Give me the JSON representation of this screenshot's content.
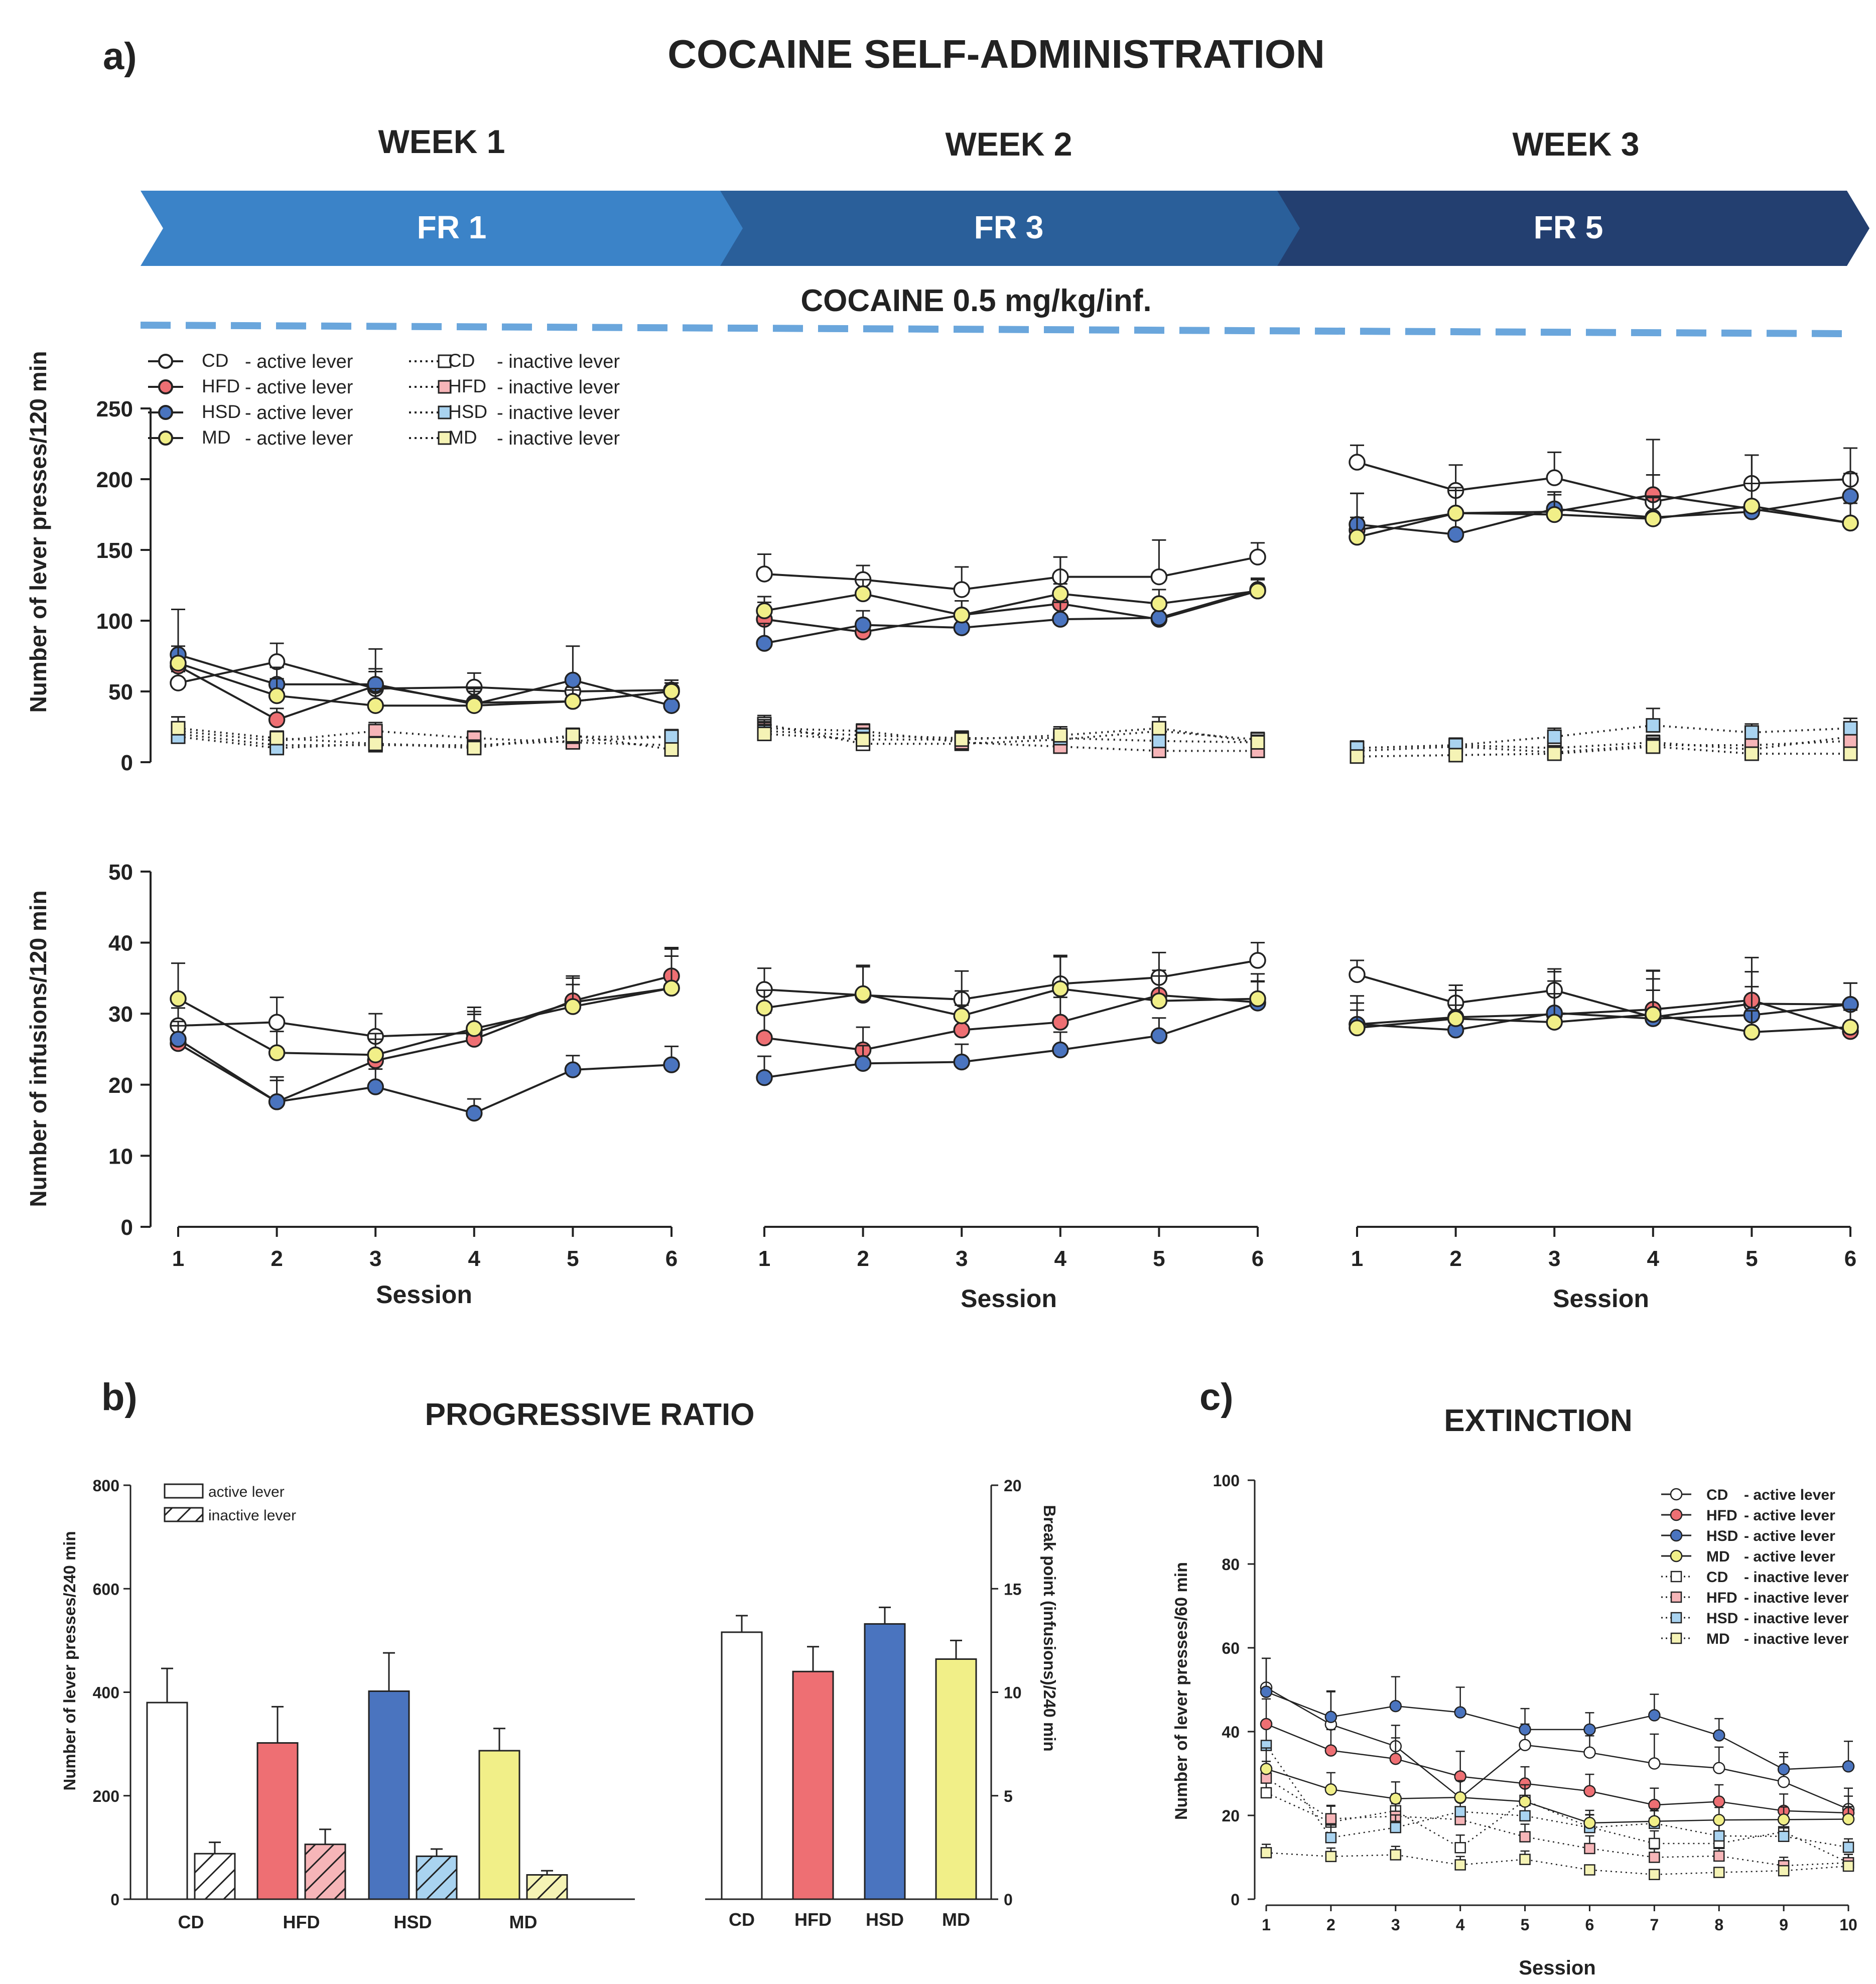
{
  "panel_a": {
    "label": "a)",
    "title": "COCAINE SELF-ADMINISTRATION",
    "weeks": [
      {
        "name": "WEEK 1",
        "schedule": "FR 1",
        "color": "#3b83c8"
      },
      {
        "name": "WEEK 2",
        "schedule": "FR 3",
        "color": "#2a5f9a"
      },
      {
        "name": "WEEK 3",
        "schedule": "FR 5",
        "color": "#233f70"
      }
    ],
    "dose_label": "COCAINE 0.5 mg/kg/inf.",
    "dose_color": "#2e5ea8",
    "dash_color": "#6aa6dc",
    "legend": [
      {
        "group": "CD",
        "active": "- active lever",
        "inactive": "- inactive lever"
      },
      {
        "group": "HFD",
        "active": "- active lever",
        "inactive": "- inactive lever"
      },
      {
        "group": "HSD",
        "active": "- active lever",
        "inactive": "- inactive lever"
      },
      {
        "group": "MD",
        "active": "- active lever",
        "inactive": "- inactive lever"
      }
    ],
    "top_ylabel": "Number of lever presses/120 min",
    "bottom_ylabel": "Number of infusions/120 min",
    "xlabel": "Session"
  },
  "group_colors": {
    "CD": "#ffffff",
    "HFD": "#ee6f73",
    "HSD": "#4a74bf",
    "MD": "#f1ef88"
  },
  "inactive_colors": {
    "CD": "#ffffff",
    "HFD": "#f6b5b8",
    "HSD": "#a9d3f0",
    "MD": "#f5f3b5"
  },
  "panel_b": {
    "label": "b)",
    "title": "PROGRESSIVE RATIO",
    "legend_active": "active lever",
    "legend_inactive": "inactive lever",
    "ylabel_left": "Number of lever presses/240 min",
    "ylabel_right": "Break point (infusions)/240 min"
  },
  "panel_c": {
    "label": "c)",
    "title": "EXTINCTION",
    "legend": [
      {
        "group": "CD",
        "text": "- active lever"
      },
      {
        "group": "HFD",
        "text": "- active lever"
      },
      {
        "group": "HSD",
        "text": "- active lever"
      },
      {
        "group": "MD",
        "text": "- active lever"
      },
      {
        "group": "CD",
        "text": "- inactive lever"
      },
      {
        "group": "HFD",
        "text": "- inactive lever"
      },
      {
        "group": "HSD",
        "text": "- inactive lever"
      },
      {
        "group": "MD",
        "text": "- inactive lever"
      }
    ],
    "ylabel": "Number of lever presses/60 min",
    "xlabel": "Session"
  },
  "chart_data": [
    {
      "id": "a_lever",
      "type": "line",
      "ylabel": "Number of lever presses/120 min",
      "xlabel": "Session",
      "ylim": [
        0,
        250
      ],
      "yticks": [
        0,
        50,
        100,
        150,
        200,
        250
      ],
      "x": [
        1,
        2,
        3,
        4,
        5,
        6
      ],
      "weeks": [
        {
          "name": "WEEK 1",
          "active": {
            "CD": [
              56,
              71,
              52,
              53,
              50,
              51
            ],
            "HFD": [
              68,
              30,
              54,
              42,
              43,
              50
            ],
            "HSD": [
              76,
              55,
              55,
              41,
              58,
              40
            ],
            "MD": [
              70,
              47,
              40,
              40,
              43,
              50
            ]
          },
          "active_err": {
            "CD": [
              8,
              13,
              12,
              10,
              8,
              7
            ],
            "HFD": [
              10,
              8,
              12,
              10,
              10,
              6
            ],
            "HSD": [
              32,
              12,
              25,
              12,
              24,
              10
            ],
            "MD": [
              12,
              12,
              12,
              10,
              8,
              6
            ]
          },
          "inactive": {
            "CD": [
              20,
              12,
              12,
              12,
              15,
              18
            ],
            "HFD": [
              22,
              15,
              22,
              17,
              14,
              12
            ],
            "HSD": [
              18,
              10,
              13,
              11,
              18,
              18
            ],
            "MD": [
              24,
              17,
              13,
              10,
              19,
              9
            ]
          },
          "inactive_err": {
            "CD": [
              5,
              5,
              4,
              4,
              5,
              5
            ],
            "HFD": [
              6,
              5,
              6,
              5,
              5,
              4
            ],
            "HSD": [
              14,
              5,
              5,
              4,
              5,
              5
            ],
            "MD": [
              8,
              5,
              4,
              4,
              5,
              4
            ]
          }
        },
        {
          "name": "WEEK 2",
          "active": {
            "CD": [
              133,
              129,
              122,
              131,
              131,
              145
            ],
            "HFD": [
              101,
              92,
              104,
              112,
              101,
              121
            ],
            "HSD": [
              84,
              97,
              95,
              101,
              102,
              122
            ],
            "MD": [
              107,
              119,
              104,
              119,
              112,
              121
            ]
          },
          "active_err": {
            "CD": [
              14,
              10,
              16,
              14,
              26,
              10
            ],
            "HFD": [
              12,
              8,
              10,
              14,
              12,
              8
            ],
            "HSD": [
              14,
              10,
              8,
              12,
              10,
              8
            ],
            "MD": [
              10,
              10,
              10,
              26,
              10,
              8
            ]
          },
          "inactive": {
            "CD": [
              27,
              13,
              13,
              16,
              22,
              16
            ],
            "HFD": [
              24,
              22,
              14,
              11,
              8,
              8
            ],
            "HSD": [
              22,
              19,
              17,
              17,
              15,
              14
            ],
            "MD": [
              20,
              16,
              16,
              19,
              24,
              14
            ]
          },
          "inactive_err": {
            "CD": [
              6,
              5,
              5,
              5,
              6,
              5
            ],
            "HFD": [
              6,
              5,
              4,
              4,
              4,
              4
            ],
            "HSD": [
              6,
              5,
              5,
              5,
              5,
              5
            ],
            "MD": [
              6,
              5,
              5,
              6,
              8,
              5
            ]
          }
        },
        {
          "name": "WEEK 3",
          "active": {
            "CD": [
              212,
              192,
              201,
              184,
              197,
              200
            ],
            "HFD": [
              164,
              176,
              177,
              189,
              179,
              169
            ],
            "HSD": [
              168,
              161,
              179,
              173,
              177,
              188
            ],
            "MD": [
              159,
              176,
              175,
              172,
              181,
              169
            ]
          },
          "active_err": {
            "CD": [
              12,
              18,
              18,
              44,
              20,
              22
            ],
            "HFD": [
              26,
              18,
              14,
              14,
              38,
              18
            ],
            "HSD": [
              22,
              14,
              12,
              14,
              40,
              16
            ],
            "MD": [
              14,
              16,
              14,
              16,
              16,
              14
            ]
          },
          "inactive": {
            "CD": [
              10,
              12,
              10,
              14,
              9,
              18
            ],
            "HFD": [
              8,
              11,
              7,
              12,
              12,
              15
            ],
            "HSD": [
              10,
              12,
              18,
              26,
              21,
              24
            ],
            "MD": [
              4,
              5,
              6,
              11,
              6,
              6
            ]
          },
          "inactive_err": {
            "CD": [
              4,
              4,
              4,
              5,
              4,
              6
            ],
            "HFD": [
              4,
              4,
              4,
              5,
              5,
              5
            ],
            "HSD": [
              5,
              5,
              6,
              12,
              6,
              7
            ],
            "MD": [
              3,
              3,
              3,
              4,
              3,
              3
            ]
          }
        }
      ]
    },
    {
      "id": "a_infusions",
      "type": "line",
      "ylabel": "Number of infusions/120 min",
      "xlabel": "Session",
      "ylim": [
        0,
        50
      ],
      "yticks": [
        0,
        10,
        20,
        30,
        40,
        50
      ],
      "x": [
        1,
        2,
        3,
        4,
        5,
        6
      ],
      "xticks": [
        "1",
        "2",
        "3",
        "4",
        "5",
        "6"
      ],
      "weeks": [
        {
          "name": "WEEK 1",
          "active": {
            "CD": [
              28.3,
              28.8,
              26.8,
              27.3,
              31.6,
              33.6
            ],
            "HFD": [
              25.8,
              17.6,
              23.4,
              26.4,
              31.8,
              35.3
            ],
            "HSD": [
              26.4,
              17.6,
              19.7,
              16.0,
              22.1,
              22.8
            ],
            "MD": [
              32.1,
              24.5,
              24.2,
              27.9,
              31.0,
              33.6
            ]
          },
          "active_err": {
            "CD": [
              2.5,
              3.5,
              3.2,
              3.0,
              2.5,
              4.5
            ],
            "HFD": [
              2.5,
              3.5,
              3.0,
              3.5,
              3.5,
              4.0
            ],
            "HSD": [
              2.5,
              3.0,
              2.5,
              2.0,
              2.0,
              2.6
            ],
            "MD": [
              5.0,
              3.0,
              3.0,
              3.0,
              4.0,
              5.5
            ]
          }
        },
        {
          "name": "WEEK 2",
          "active": {
            "CD": [
              33.4,
              32.6,
              32.0,
              34.2,
              35.1,
              37.5
            ],
            "HFD": [
              26.6,
              24.9,
              27.7,
              28.8,
              32.6,
              31.6
            ],
            "HSD": [
              21.0,
              23.0,
              23.2,
              24.9,
              26.9,
              31.5
            ],
            "MD": [
              30.8,
              32.8,
              29.7,
              33.5,
              31.8,
              32.1
            ]
          },
          "active_err": {
            "CD": [
              3.0,
              4.0,
              4.0,
              4.0,
              3.5,
              2.5
            ],
            "HFD": [
              3.5,
              3.2,
              3.5,
              3.5,
              3.5,
              3.0
            ],
            "HSD": [
              3.0,
              2.5,
              2.5,
              2.5,
              2.5,
              3.0
            ],
            "MD": [
              2.5,
              4.0,
              3.5,
              4.5,
              3.5,
              3.5
            ]
          }
        },
        {
          "name": "WEEK 3",
          "active": {
            "CD": [
              35.5,
              31.5,
              33.3,
              29.5,
              31.4,
              31.3
            ],
            "HFD": [
              28.5,
              29.5,
              29.9,
              30.6,
              31.9,
              27.5
            ],
            "HSD": [
              28.5,
              27.7,
              30.1,
              29.3,
              29.8,
              31.3
            ],
            "MD": [
              28.0,
              29.3,
              28.8,
              29.9,
              27.4,
              28.1
            ]
          },
          "active_err": {
            "CD": [
              2.0,
              2.5,
              3.0,
              6.5,
              6.5,
              3.0
            ],
            "HFD": [
              3.0,
              4.5,
              6.0,
              5.5,
              4.0,
              3.0
            ],
            "HSD": [
              4.0,
              3.5,
              4.5,
              4.0,
              4.0,
              3.0
            ],
            "MD": [
              2.5,
              4.0,
              4.0,
              5.0,
              3.0,
              2.5
            ]
          }
        }
      ]
    },
    {
      "id": "b_lever",
      "type": "bar",
      "title": "PROGRESSIVE RATIO",
      "categories": [
        "CD",
        "HFD",
        "HSD",
        "MD"
      ],
      "ylabel": "Number of lever presses/240 min",
      "ylim": [
        0,
        800
      ],
      "yticks": [
        0,
        200,
        400,
        600,
        800
      ],
      "series": [
        {
          "name": "active lever",
          "values": [
            380,
            302,
            402,
            287
          ],
          "errors": [
            66,
            70,
            74,
            43
          ]
        },
        {
          "name": "inactive lever",
          "values": [
            88,
            106,
            83,
            47
          ],
          "errors": [
            22,
            29,
            14,
            8
          ]
        }
      ]
    },
    {
      "id": "b_breakpoint",
      "type": "bar",
      "categories": [
        "CD",
        "HFD",
        "HSD",
        "MD"
      ],
      "ylabel": "Break point (infusions)/240 min",
      "ylim": [
        0,
        20
      ],
      "yticks": [
        0,
        5,
        10,
        15,
        20
      ],
      "series": [
        {
          "name": "break point",
          "values": [
            12.9,
            11.0,
            13.3,
            11.6
          ],
          "errors": [
            0.8,
            1.2,
            0.8,
            0.9
          ]
        }
      ]
    },
    {
      "id": "c_extinction",
      "type": "line",
      "title": "EXTINCTION",
      "ylabel": "Number of lever presses/60 min",
      "xlabel": "Session",
      "ylim": [
        0,
        100
      ],
      "yticks": [
        0,
        20,
        40,
        60,
        80,
        100
      ],
      "x": [
        1,
        2,
        3,
        4,
        5,
        6,
        7,
        8,
        9,
        10
      ],
      "active": {
        "CD": [
          50.5,
          41.7,
          36.5,
          24.2,
          36.8,
          35.0,
          32.4,
          31.3,
          28.0,
          21.5
        ],
        "HFD": [
          41.8,
          35.5,
          33.5,
          29.3,
          27.6,
          25.8,
          22.5,
          23.3,
          21.1,
          20.6
        ],
        "HSD": [
          49.5,
          43.5,
          46.1,
          44.6,
          40.5,
          40.5,
          43.9,
          39.1,
          31.0,
          31.7
        ],
        "MD": [
          31.1,
          26.2,
          24.0,
          24.3,
          23.3,
          18.2,
          18.6,
          18.9,
          19.0,
          19.1
        ]
      },
      "active_err": {
        "CD": [
          7,
          8,
          5,
          5,
          5,
          4,
          7,
          5,
          6,
          5
        ],
        "HFD": [
          6,
          5,
          5,
          6,
          4,
          4,
          4,
          4,
          4,
          4
        ],
        "HSD": [
          8,
          6,
          7,
          6,
          5,
          4,
          5,
          4,
          4,
          6
        ],
        "MD": [
          5,
          4,
          4,
          4,
          4,
          3,
          3,
          3,
          3,
          3
        ]
      },
      "inactive": {
        "CD": [
          25.4,
          18.4,
          21.1,
          12.3,
          23.6,
          17.2,
          13.3,
          13.3,
          16.1,
          8.7
        ],
        "HFD": [
          28.9,
          19.2,
          19.8,
          19.0,
          14.9,
          12.1,
          10.0,
          10.3,
          8.0,
          8.7
        ],
        "HSD": [
          36.7,
          14.7,
          17.1,
          20.9,
          19.9,
          17.1,
          18.1,
          15.1,
          15.0,
          12.4
        ],
        "MD": [
          11.1,
          10.2,
          10.6,
          8.2,
          9.5,
          7.0,
          5.9,
          6.4,
          6.8,
          7.9
        ]
      },
      "inactive_err": {
        "CD": [
          4,
          4,
          4,
          3,
          4,
          3,
          3,
          3,
          3,
          2
        ],
        "HFD": [
          4,
          3,
          3,
          3,
          3,
          3,
          2,
          2,
          2,
          2
        ],
        "HSD": [
          5,
          3,
          3,
          3,
          3,
          3,
          3,
          3,
          2,
          2
        ],
        "MD": [
          2,
          2,
          2,
          2,
          2,
          1,
          1,
          1,
          1,
          1
        ]
      }
    }
  ]
}
